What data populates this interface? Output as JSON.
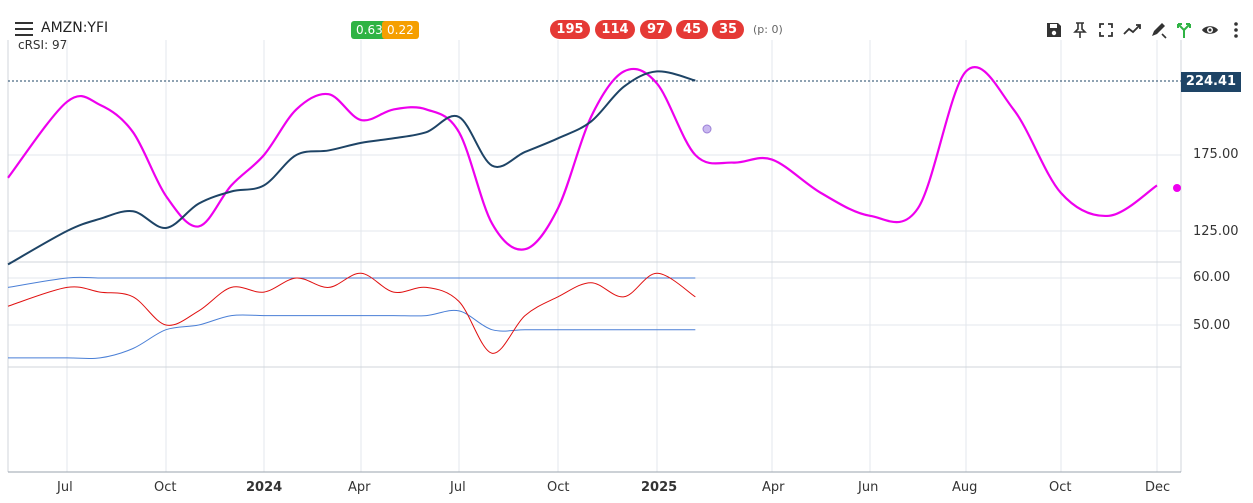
{
  "header": {
    "symbol": "AMZN:YFI",
    "indicator": "cRSI: 97",
    "badges": [
      {
        "label": "0.63",
        "color": "#2fb344"
      },
      {
        "label": "0.22",
        "color": "#f59f00"
      }
    ],
    "cycle_pills": [
      "195",
      "114",
      "97",
      "45",
      "35"
    ],
    "p_value": "(p: 0)"
  },
  "toolbar_icons": [
    "save-icon",
    "pin-icon",
    "fullscreen-icon",
    "trend-icon",
    "draw-icon",
    "fork-icon",
    "eye-icon",
    "more-vertical-icon"
  ],
  "price_axis": {
    "current_price": "224.41",
    "ticks": [
      "175.00",
      "125.00"
    ],
    "indicator_ticks": [
      "60.00",
      "50.00"
    ]
  },
  "x_axis": {
    "labels": [
      "Jul",
      "Oct",
      "2024",
      "Apr",
      "Jul",
      "Oct",
      "2025",
      "Apr",
      "Jun",
      "Aug",
      "Oct",
      "Dec"
    ]
  },
  "colors": {
    "price": "#1e4466",
    "cycle": "#ee00ee",
    "crsi": "#e01010",
    "bands": "#4a7fd6",
    "price_tag": "#1e4466"
  },
  "chart_data": [
    {
      "type": "line",
      "x": [
        "2023-06",
        "2023-07",
        "2023-08",
        "2023-09",
        "2023-10",
        "2023-11",
        "2023-12",
        "2024-01",
        "2024-02",
        "2024-03",
        "2024-04",
        "2024-05",
        "2024-06",
        "2024-07",
        "2024-08",
        "2024-09",
        "2024-10",
        "2024-11",
        "2024-12",
        "2025-01",
        "2025-02"
      ],
      "series": [
        {
          "values": [
            103,
            125,
            133,
            138,
            127,
            143,
            151,
            155,
            175,
            178,
            183,
            186,
            190,
            200,
            168,
            177,
            186,
            197,
            220,
            230,
            224
          ]
        }
      ],
      "ylim": [
        95,
        250
      ]
    },
    {
      "type": "line",
      "x": [
        "2023-06",
        "2023-07",
        "2023-08",
        "2023-09",
        "2023-10",
        "2023-11",
        "2023-12",
        "2024-01",
        "2024-02",
        "2024-03",
        "2024-04",
        "2024-05",
        "2024-06",
        "2024-07",
        "2024-08",
        "2024-09",
        "2024-10",
        "2024-11",
        "2024-12",
        "2025-01",
        "2025-02",
        "2025-03",
        "2025-04",
        "2025-05",
        "2025-06",
        "2025-07",
        "2025-08",
        "2025-09",
        "2025-10",
        "2025-11",
        "2025-12"
      ],
      "series": [
        {
          "values": [
            160,
            210,
            208,
            190,
            148,
            128,
            155,
            175,
            205,
            215,
            198,
            205,
            205,
            190,
            130,
            113,
            140,
            200,
            230,
            222,
            175,
            170,
            172,
            150,
            135,
            140,
            230,
            205,
            150,
            135,
            155
          ]
        }
      ],
      "ylim": [
        95,
        250
      ]
    },
    {
      "type": "line",
      "x": [
        "2023-06",
        "2023-07",
        "2023-08",
        "2023-09",
        "2023-10",
        "2023-11",
        "2023-12",
        "2024-01",
        "2024-02",
        "2024-03",
        "2024-04",
        "2024-05",
        "2024-06",
        "2024-07",
        "2024-08",
        "2024-09",
        "2024-10",
        "2024-11",
        "2024-12",
        "2025-01",
        "2025-02"
      ],
      "series": [
        {
          "values": [
            54,
            58,
            57,
            56,
            50,
            53,
            58,
            57,
            60,
            58,
            61,
            57,
            58,
            55,
            44,
            52,
            56,
            59,
            56,
            61,
            56
          ]
        },
        {
          "values": [
            58,
            60,
            60,
            60,
            60,
            60,
            60,
            60,
            60,
            60,
            60,
            60,
            60,
            60,
            60,
            60,
            60,
            60,
            60,
            60,
            60
          ]
        },
        {
          "values": [
            43,
            43,
            43,
            45,
            49,
            50,
            52,
            52,
            52,
            52,
            52,
            52,
            52,
            53,
            49,
            49,
            49,
            49,
            49,
            49,
            49
          ]
        }
      ],
      "ylim": [
        40,
        64
      ]
    }
  ]
}
